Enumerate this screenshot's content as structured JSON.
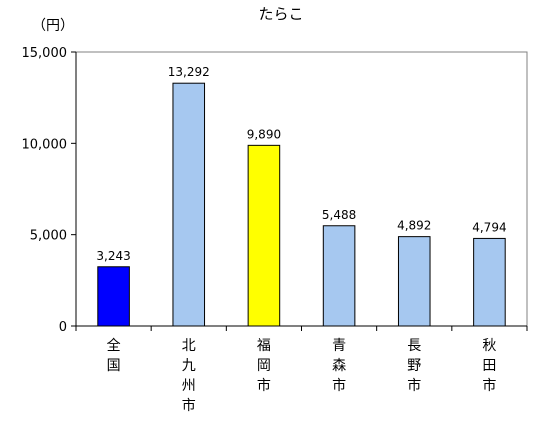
{
  "chart_data": {
    "type": "bar",
    "title": "たらこ",
    "ylabel": "（円）",
    "xlabel": "",
    "ylim": [
      0,
      15000
    ],
    "yticks": [
      0,
      5000,
      10000,
      15000
    ],
    "ytick_labels": [
      "0",
      "5,000",
      "10,000",
      "15,000"
    ],
    "categories": [
      "全国",
      "北九州市",
      "福岡市",
      "青森市",
      "長野市",
      "秋田市"
    ],
    "values": [
      3243,
      13292,
      9890,
      5488,
      4892,
      4794
    ],
    "value_labels": [
      "3,243",
      "13,292",
      "9,890",
      "5,488",
      "4,892",
      "4,794"
    ],
    "colors": [
      "#0000FF",
      "#A6C8F0",
      "#FFFF00",
      "#A6C8F0",
      "#A6C8F0",
      "#A6C8F0"
    ],
    "grid": false,
    "legend": "none"
  }
}
